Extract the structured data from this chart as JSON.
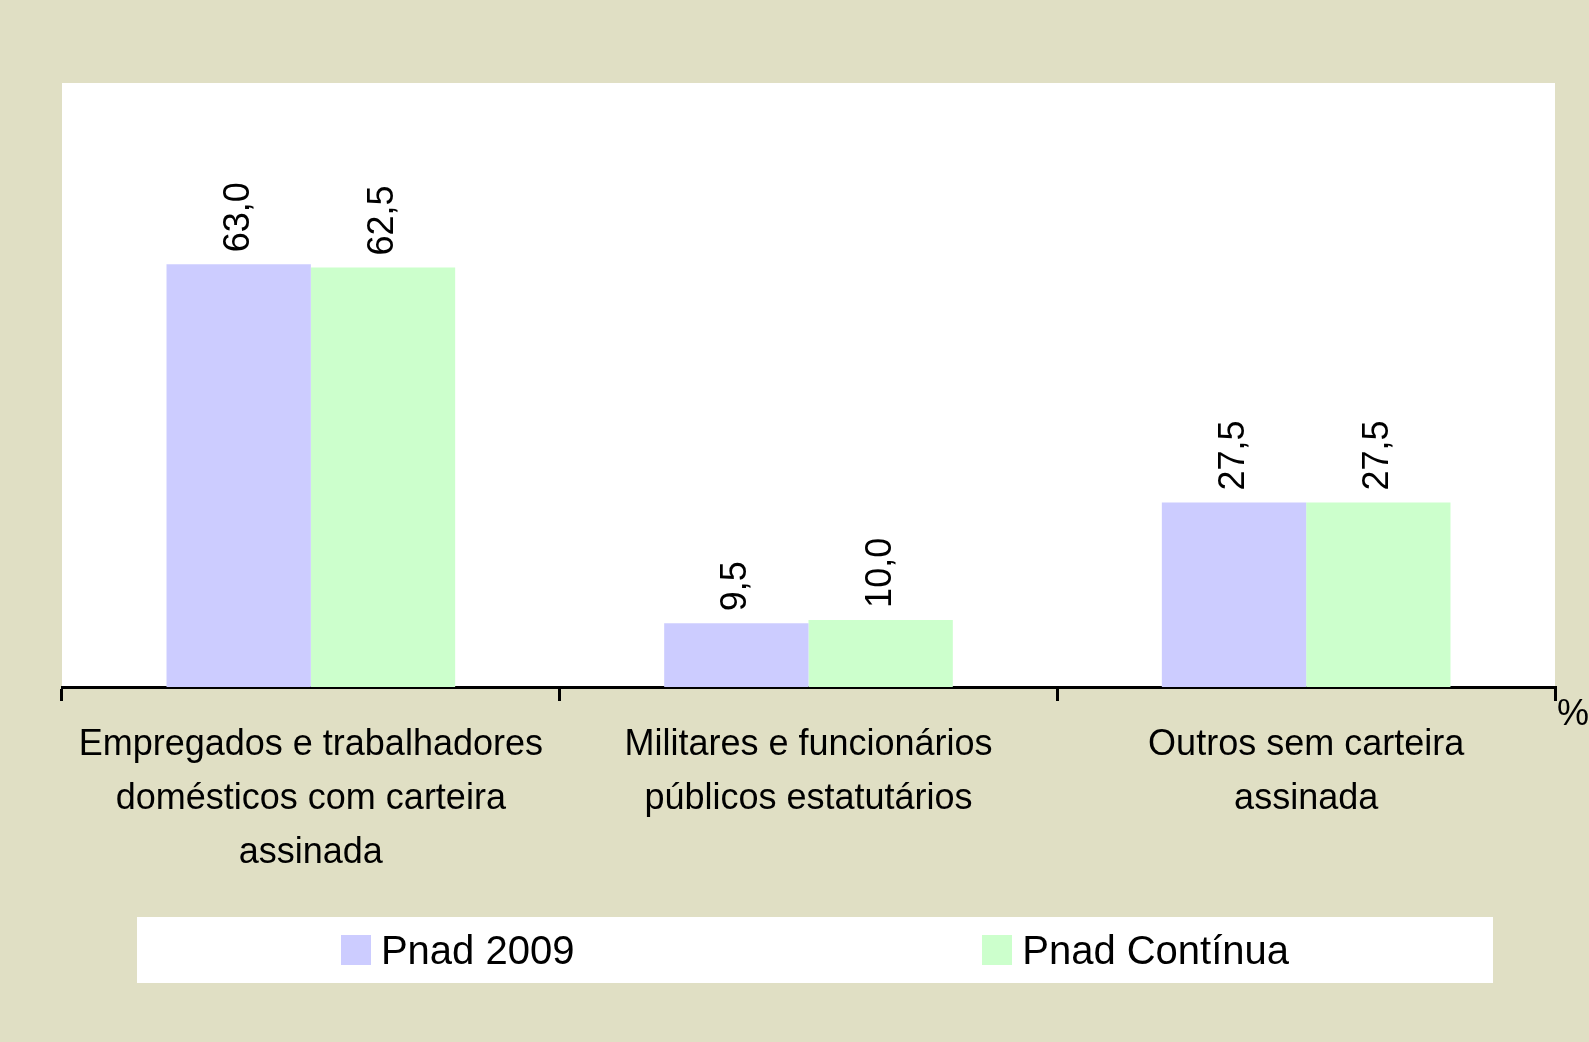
{
  "chart_data": {
    "type": "bar",
    "categories": [
      "Empregados e trabalhadores domésticos com carteira assinada",
      "Militares e funcionários públicos estatutários",
      "Outros sem carteira assinada"
    ],
    "series": [
      {
        "name": "Pnad 2009",
        "color": "#ccccff",
        "values": [
          63.0,
          9.5,
          27.5
        ],
        "value_labels": [
          "63,0",
          "9,5",
          "27,5"
        ]
      },
      {
        "name": "Pnad Contínua",
        "color": "#ccffcc",
        "values": [
          62.5,
          10.0,
          27.5
        ],
        "value_labels": [
          "62,5",
          "10,0",
          "27,5"
        ]
      }
    ],
    "legend": "bottom",
    "grid": false,
    "annotations": [
      "%"
    ]
  }
}
